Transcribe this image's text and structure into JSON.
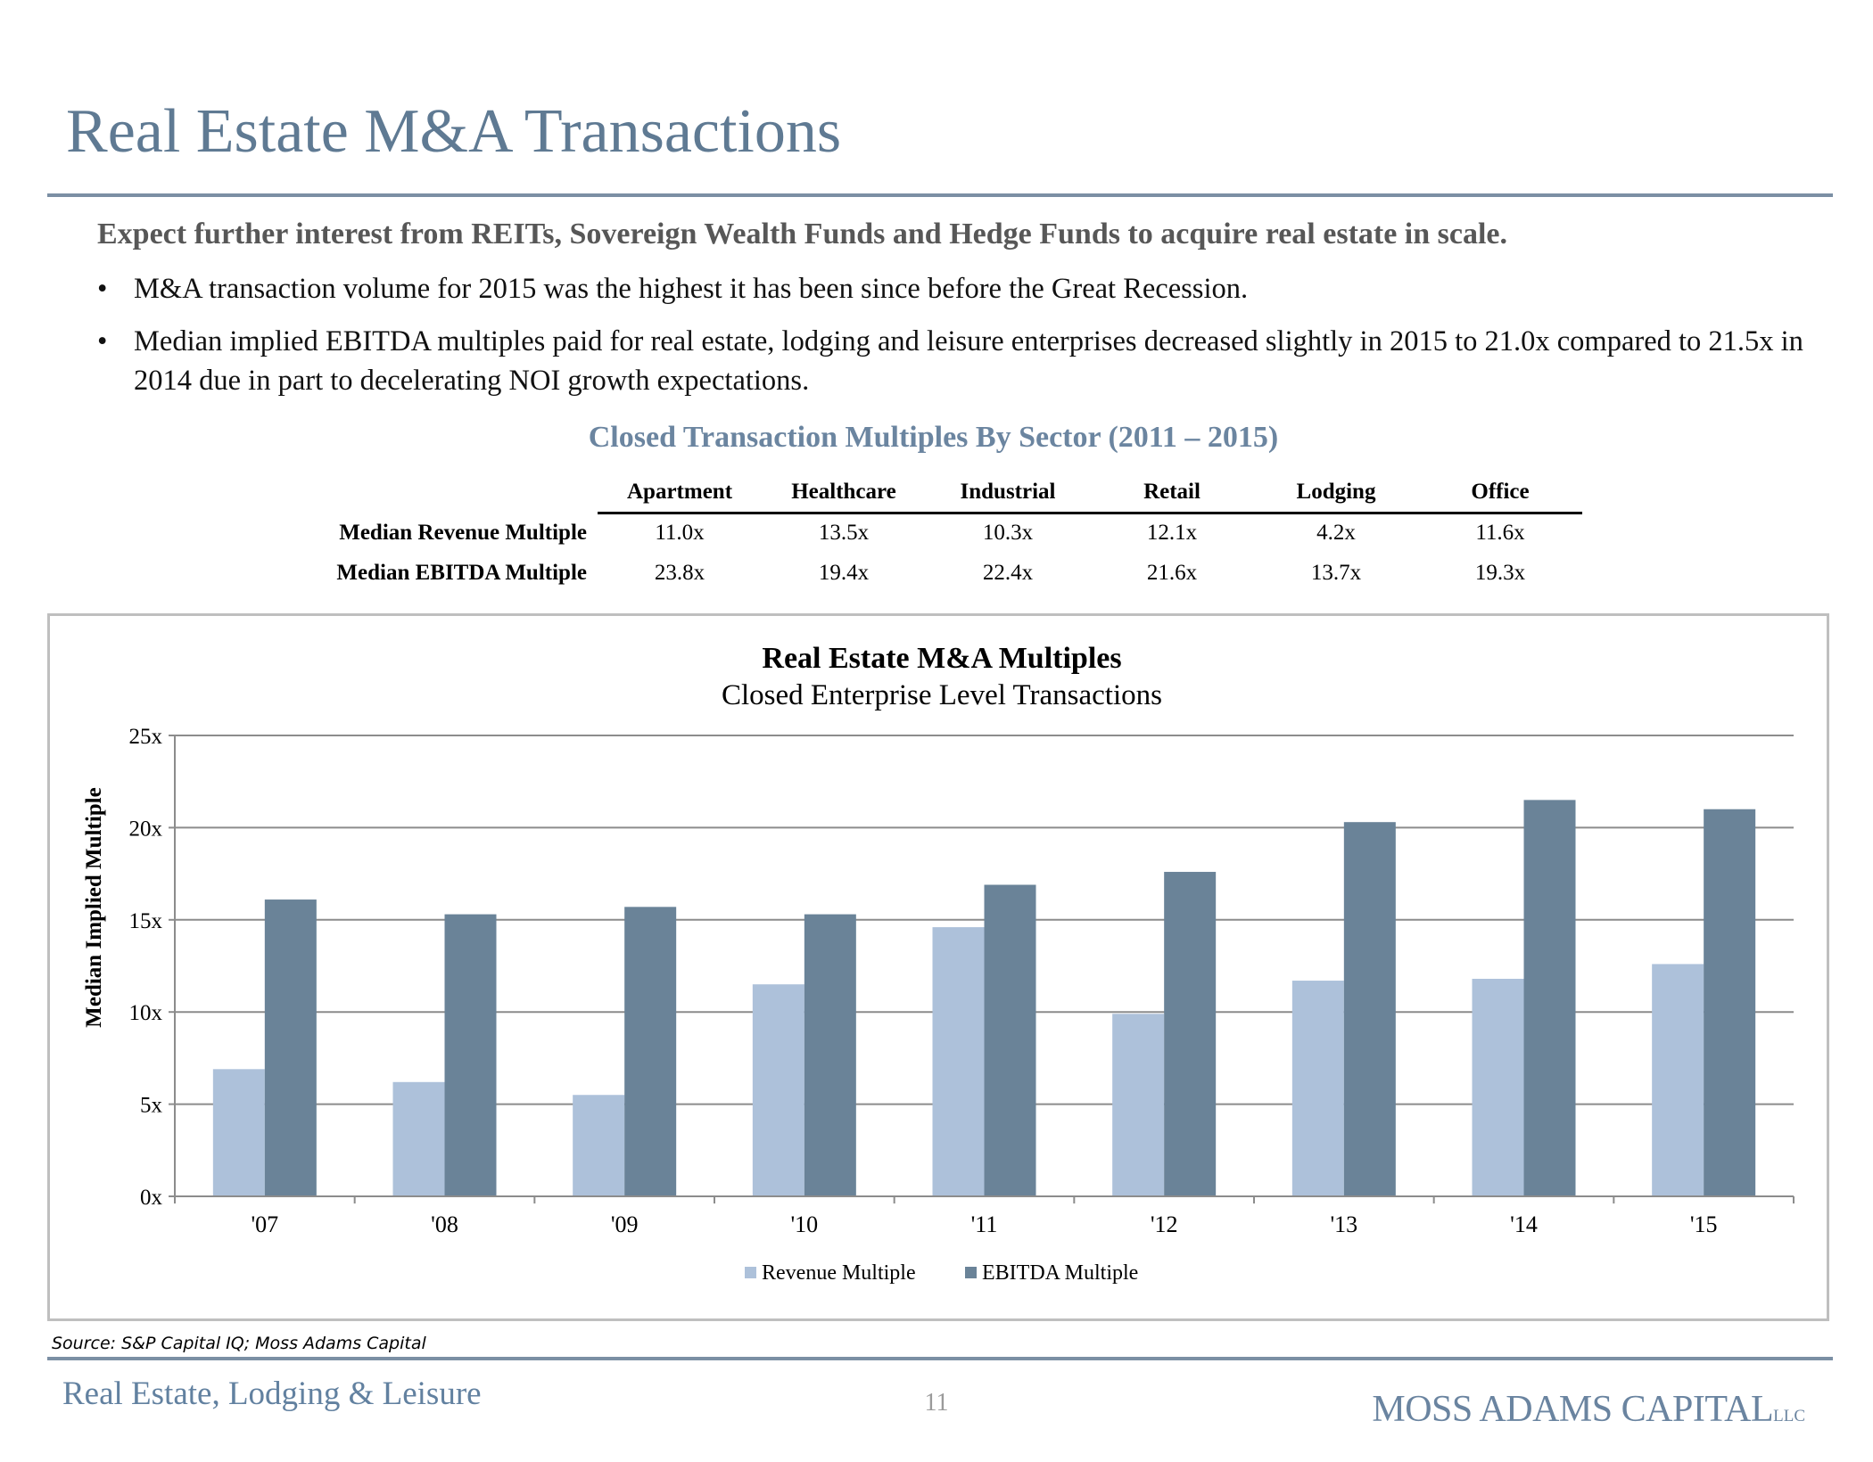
{
  "page": {
    "title": "Real Estate M&A Transactions",
    "lead": "Expect further interest from REITs, Sovereign Wealth Funds and Hedge Funds to acquire real estate in scale.",
    "bullets": [
      "M&A transaction volume for 2015 was the highest it has been since before the Great Recession.",
      "Median implied EBITDA multiples paid for real estate, lodging and leisure enterprises decreased slightly in 2015 to 21.0x compared to 21.5x in 2014 due in part to decelerating NOI growth expectations."
    ],
    "bullet_glyph": "•"
  },
  "table": {
    "title": "Closed Transaction Multiples By Sector (2011 – 2015)",
    "columns": [
      "Apartment",
      "Healthcare",
      "Industrial",
      "Retail",
      "Lodging",
      "Office"
    ],
    "rows": [
      {
        "label": "Median Revenue Multiple",
        "values": [
          "11.0x",
          "13.5x",
          "10.3x",
          "12.1x",
          "4.2x",
          "11.6x"
        ]
      },
      {
        "label": "Median EBITDA Multiple",
        "values": [
          "23.8x",
          "19.4x",
          "22.4x",
          "21.6x",
          "13.7x",
          "19.3x"
        ]
      }
    ]
  },
  "chart_data": {
    "type": "bar",
    "title": "Real Estate M&A Multiples",
    "subtitle": "Closed Enterprise Level Transactions",
    "xlabel": "",
    "ylabel": "Median Implied Multiple",
    "categories": [
      "'07",
      "'08",
      "'09",
      "'10",
      "'11",
      "'12",
      "'13",
      "'14",
      "'15"
    ],
    "series": [
      {
        "name": "Revenue Multiple",
        "color": "#adc1da",
        "values": [
          6.9,
          6.2,
          5.5,
          11.5,
          14.6,
          9.9,
          11.7,
          11.8,
          12.6
        ]
      },
      {
        "name": "EBITDA Multiple",
        "color": "#6a8398",
        "values": [
          16.1,
          15.3,
          15.7,
          15.3,
          16.9,
          17.6,
          20.3,
          21.5,
          21.0
        ]
      }
    ],
    "ylim": [
      0,
      25
    ],
    "yticks": [
      0,
      5,
      10,
      15,
      20,
      25
    ],
    "ytick_labels": [
      "0x",
      "5x",
      "10x",
      "15x",
      "20x",
      "25x"
    ],
    "grid": true,
    "legend_position": "bottom"
  },
  "footer": {
    "source": "Source: S&P Capital IQ; Moss Adams Capital",
    "section": "Real Estate, Lodging & Leisure",
    "page_number": "11",
    "brand": "MOSS ADAMS CAPITAL",
    "brand_suffix": "LLC"
  }
}
